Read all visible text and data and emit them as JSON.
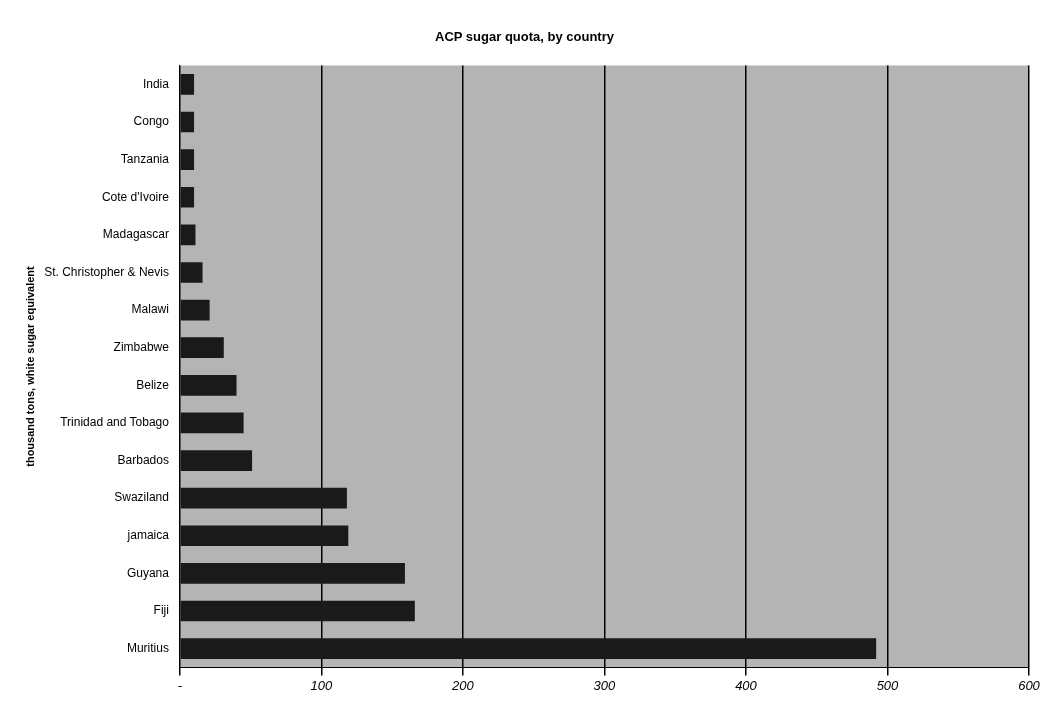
{
  "chart_data": {
    "type": "bar",
    "orientation": "horizontal",
    "title": "ACP sugar quota, by country",
    "ylabel": "thousand tons, white sugar equivalent",
    "categories": [
      "India",
      "Congo",
      "Tanzania",
      "Cote d'Ivoire",
      "Madagascar",
      "St. Christopher & Nevis",
      "Malawi",
      "Zimbabwe",
      "Belize",
      "Trinidad and Tobago",
      "Barbados",
      "Swaziland",
      "jamaica",
      "Guyana",
      "Fiji",
      "Muritius"
    ],
    "values": [
      10,
      10,
      10,
      10,
      11,
      16,
      21,
      31,
      40,
      45,
      51,
      118,
      119,
      159,
      166,
      492
    ],
    "color": "#1a1a1a",
    "xlim": [
      0,
      600
    ],
    "xticks": [
      {
        "value": 0,
        "label": "-"
      },
      100,
      200,
      300,
      400,
      500,
      600
    ],
    "grid": "x",
    "legend": false
  }
}
